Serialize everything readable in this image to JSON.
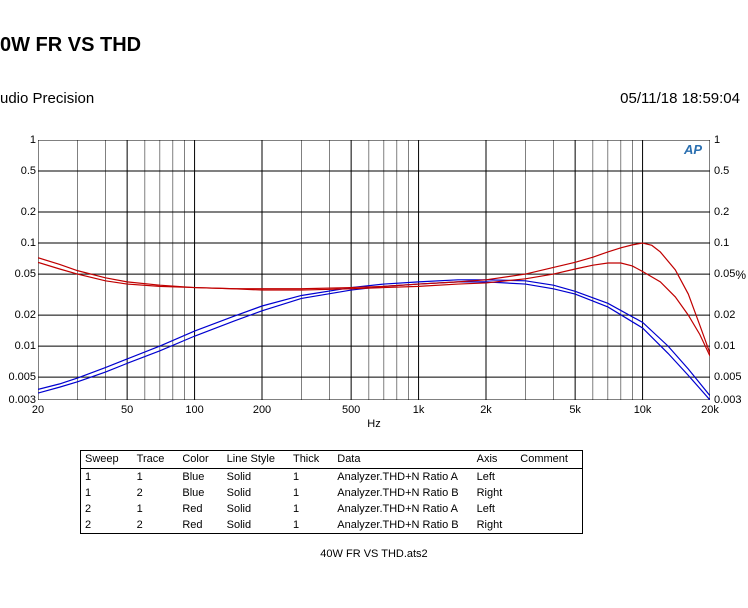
{
  "title": "0W FR VS THD",
  "subtitle": "udio Precision",
  "timestamp": "05/11/18 18:59:04",
  "filename": "40W FR VS THD.ats2",
  "logo_text": "AP",
  "right_axis_unit": "%",
  "chart": {
    "type": "line-loglog",
    "background_color": "#ffffff",
    "grid_color": "#000000",
    "grid_line_width": 1,
    "x_axis": {
      "label": "Hz",
      "label_fontsize": 11,
      "scale": "log",
      "lim": [
        20,
        20000
      ],
      "major_ticks": [
        20,
        50,
        100,
        200,
        500,
        1000,
        2000,
        5000,
        10000,
        20000
      ],
      "major_labels": [
        "20",
        "50",
        "100",
        "200",
        "500",
        "1k",
        "2k",
        "5k",
        "10k",
        "20k"
      ],
      "minor_ticks": [
        30,
        40,
        60,
        70,
        80,
        90,
        300,
        400,
        600,
        700,
        800,
        900,
        3000,
        4000,
        6000,
        7000,
        8000,
        9000
      ]
    },
    "y_axis": {
      "scale": "log",
      "lim": [
        0.003,
        1
      ],
      "major_ticks": [
        0.003,
        0.005,
        0.01,
        0.02,
        0.05,
        0.1,
        0.2,
        0.5,
        1
      ],
      "major_labels": [
        "0.003",
        "0.005",
        "0.01",
        "0.02",
        "0.05",
        "0.1",
        "0.2",
        "0.5",
        "1"
      ]
    },
    "series": [
      {
        "name": "blue-A",
        "color": "#0000d0",
        "line_width": 1.2,
        "points": [
          [
            20,
            0.0035
          ],
          [
            25,
            0.004
          ],
          [
            30,
            0.0045
          ],
          [
            40,
            0.0056
          ],
          [
            50,
            0.0068
          ],
          [
            70,
            0.009
          ],
          [
            100,
            0.0125
          ],
          [
            150,
            0.0175
          ],
          [
            200,
            0.022
          ],
          [
            300,
            0.029
          ],
          [
            500,
            0.035
          ],
          [
            700,
            0.038
          ],
          [
            1000,
            0.04
          ],
          [
            1500,
            0.042
          ],
          [
            2000,
            0.042
          ],
          [
            3000,
            0.04
          ],
          [
            4000,
            0.036
          ],
          [
            5000,
            0.032
          ],
          [
            7000,
            0.024
          ],
          [
            10000,
            0.015
          ],
          [
            13000,
            0.0085
          ],
          [
            16000,
            0.0052
          ],
          [
            20000,
            0.003
          ]
        ]
      },
      {
        "name": "blue-B",
        "color": "#0000d0",
        "line_width": 1.2,
        "points": [
          [
            20,
            0.0038
          ],
          [
            25,
            0.0043
          ],
          [
            30,
            0.0049
          ],
          [
            40,
            0.0062
          ],
          [
            50,
            0.0075
          ],
          [
            70,
            0.01
          ],
          [
            100,
            0.014
          ],
          [
            150,
            0.0195
          ],
          [
            200,
            0.0245
          ],
          [
            300,
            0.031
          ],
          [
            500,
            0.037
          ],
          [
            700,
            0.04
          ],
          [
            1000,
            0.042
          ],
          [
            1500,
            0.044
          ],
          [
            2000,
            0.044
          ],
          [
            3000,
            0.043
          ],
          [
            4000,
            0.039
          ],
          [
            5000,
            0.034
          ],
          [
            7000,
            0.026
          ],
          [
            10000,
            0.017
          ],
          [
            13000,
            0.01
          ],
          [
            16000,
            0.006
          ],
          [
            20000,
            0.0033
          ]
        ]
      },
      {
        "name": "red-A",
        "color": "#c00000",
        "line_width": 1.2,
        "points": [
          [
            20,
            0.065
          ],
          [
            25,
            0.056
          ],
          [
            30,
            0.05
          ],
          [
            40,
            0.043
          ],
          [
            50,
            0.04
          ],
          [
            70,
            0.038
          ],
          [
            100,
            0.037
          ],
          [
            150,
            0.036
          ],
          [
            200,
            0.036
          ],
          [
            300,
            0.036
          ],
          [
            500,
            0.037
          ],
          [
            700,
            0.038
          ],
          [
            1000,
            0.04
          ],
          [
            1500,
            0.042
          ],
          [
            2000,
            0.044
          ],
          [
            3000,
            0.05
          ],
          [
            4000,
            0.058
          ],
          [
            5000,
            0.065
          ],
          [
            6000,
            0.073
          ],
          [
            7000,
            0.082
          ],
          [
            8000,
            0.09
          ],
          [
            9000,
            0.096
          ],
          [
            10000,
            0.1
          ],
          [
            11000,
            0.095
          ],
          [
            12000,
            0.082
          ],
          [
            14000,
            0.055
          ],
          [
            16000,
            0.032
          ],
          [
            18000,
            0.016
          ],
          [
            20000,
            0.0085
          ]
        ]
      },
      {
        "name": "red-B",
        "color": "#c00000",
        "line_width": 1.2,
        "points": [
          [
            20,
            0.072
          ],
          [
            25,
            0.062
          ],
          [
            30,
            0.054
          ],
          [
            40,
            0.046
          ],
          [
            50,
            0.042
          ],
          [
            70,
            0.039
          ],
          [
            100,
            0.037
          ],
          [
            150,
            0.036
          ],
          [
            200,
            0.035
          ],
          [
            300,
            0.035
          ],
          [
            500,
            0.036
          ],
          [
            700,
            0.037
          ],
          [
            1000,
            0.038
          ],
          [
            1500,
            0.04
          ],
          [
            2000,
            0.041
          ],
          [
            3000,
            0.045
          ],
          [
            4000,
            0.05
          ],
          [
            5000,
            0.056
          ],
          [
            6000,
            0.061
          ],
          [
            7000,
            0.064
          ],
          [
            8000,
            0.064
          ],
          [
            9000,
            0.06
          ],
          [
            10000,
            0.053
          ],
          [
            12000,
            0.042
          ],
          [
            14000,
            0.03
          ],
          [
            16000,
            0.02
          ],
          [
            18000,
            0.013
          ],
          [
            20000,
            0.008
          ]
        ]
      }
    ]
  },
  "legend": {
    "columns": [
      "Sweep",
      "Trace",
      "Color",
      "Line Style",
      "Thick",
      "Data",
      "Axis",
      "Comment"
    ],
    "rows": [
      [
        "1",
        "1",
        "Blue",
        "Solid",
        "1",
        "Analyzer.THD+N Ratio A",
        "Left",
        ""
      ],
      [
        "1",
        "2",
        "Blue",
        "Solid",
        "1",
        "Analyzer.THD+N Ratio B",
        "Right",
        ""
      ],
      [
        "2",
        "1",
        "Red",
        "Solid",
        "1",
        "Analyzer.THD+N Ratio A",
        "Left",
        ""
      ],
      [
        "2",
        "2",
        "Red",
        "Solid",
        "1",
        "Analyzer.THD+N Ratio B",
        "Right",
        ""
      ]
    ]
  }
}
